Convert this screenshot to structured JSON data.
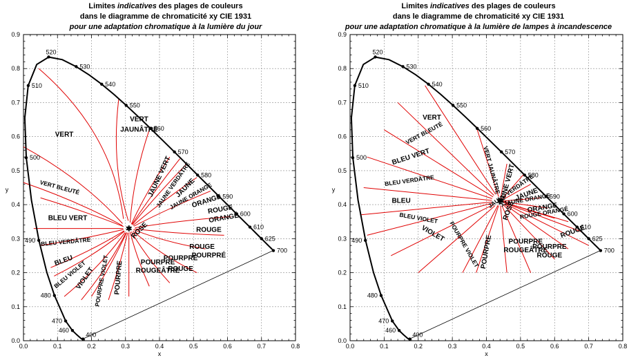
{
  "colors": {
    "boundary": "#000000",
    "region_lines": "#e00000",
    "grid": "#888888"
  },
  "chart_data": [
    {
      "type": "scatter",
      "title": {
        "line1_pre": "Limites ",
        "line1_italic": "indicatives",
        "line1_post": " des plages de couleurs",
        "line2": "dans le diagramme de chromaticité xy CIE 1931",
        "line3": "pour une adaptation chromatique à la lumière du jour"
      },
      "xlabel": "x",
      "ylabel": "y",
      "xlim": [
        0,
        0.8
      ],
      "ylim": [
        0,
        0.9
      ],
      "x_ticks": [
        "0.0",
        "0.1",
        "0.2",
        "0.3",
        "0.4",
        "0.5",
        "0.6",
        "0.7",
        "0.8"
      ],
      "y_ticks": [
        "0.0",
        "0.1",
        "0.2",
        "0.3",
        "0.4",
        "0.5",
        "0.6",
        "0.7",
        "0.8",
        "0.9"
      ],
      "grid": true,
      "white_point": [
        0.31,
        0.33
      ],
      "wavelength_labels": [
        {
          "nm": "400",
          "x": 0.175,
          "y": 0.005
        },
        {
          "nm": "460",
          "x": 0.144,
          "y": 0.03
        },
        {
          "nm": "470",
          "x": 0.124,
          "y": 0.058
        },
        {
          "nm": "480",
          "x": 0.091,
          "y": 0.133
        },
        {
          "nm": "490",
          "x": 0.045,
          "y": 0.295
        },
        {
          "nm": "500",
          "x": 0.008,
          "y": 0.538
        },
        {
          "nm": "510",
          "x": 0.014,
          "y": 0.75
        },
        {
          "nm": "520",
          "x": 0.074,
          "y": 0.834
        },
        {
          "nm": "530",
          "x": 0.155,
          "y": 0.806
        },
        {
          "nm": "540",
          "x": 0.23,
          "y": 0.754
        },
        {
          "nm": "550",
          "x": 0.302,
          "y": 0.692
        },
        {
          "nm": "560",
          "x": 0.373,
          "y": 0.624
        },
        {
          "nm": "570",
          "x": 0.444,
          "y": 0.555
        },
        {
          "nm": "580",
          "x": 0.512,
          "y": 0.487
        },
        {
          "nm": "590",
          "x": 0.575,
          "y": 0.424
        },
        {
          "nm": "600",
          "x": 0.627,
          "y": 0.373
        },
        {
          "nm": "610",
          "x": 0.666,
          "y": 0.334
        },
        {
          "nm": "625",
          "x": 0.7,
          "y": 0.3
        },
        {
          "nm": "700",
          "x": 0.735,
          "y": 0.265
        }
      ],
      "region_labels": [
        {
          "text": "VERT",
          "x": 0.12,
          "y": 0.6,
          "rot": 0
        },
        {
          "text": "VERT",
          "x": 0.34,
          "y": 0.645,
          "rot": 0
        },
        {
          "text": "JAUNÂTRE",
          "x": 0.34,
          "y": 0.615,
          "rot": 0
        },
        {
          "text": "VERT BLEUTÉ",
          "x": 0.105,
          "y": 0.445,
          "rot": 15
        },
        {
          "text": "JAUNE VERT",
          "x": 0.405,
          "y": 0.48,
          "rot": -65
        },
        {
          "text": "JAUNE VERDÂTRE",
          "x": 0.445,
          "y": 0.455,
          "rot": -55
        },
        {
          "text": "JAUNE",
          "x": 0.48,
          "y": 0.445,
          "rot": -45
        },
        {
          "text": "JAUNE ORANGE",
          "x": 0.495,
          "y": 0.42,
          "rot": -30
        },
        {
          "text": "ORANGE",
          "x": 0.54,
          "y": 0.405,
          "rot": -18
        },
        {
          "text": "ROUGE",
          "x": 0.58,
          "y": 0.38,
          "rot": -10
        },
        {
          "text": "ORANGÉ",
          "x": 0.59,
          "y": 0.355,
          "rot": -10
        },
        {
          "text": "BLEU VERT",
          "x": 0.13,
          "y": 0.355,
          "rot": 0
        },
        {
          "text": "ROSE",
          "x": 0.345,
          "y": 0.32,
          "rot": -45
        },
        {
          "text": "ROUGE",
          "x": 0.545,
          "y": 0.32,
          "rot": 0
        },
        {
          "text": "BLEU VERDÂTRE",
          "x": 0.125,
          "y": 0.285,
          "rot": -5
        },
        {
          "text": "ROUGE",
          "x": 0.525,
          "y": 0.27,
          "rot": 0
        },
        {
          "text": "POURPRÉ",
          "x": 0.545,
          "y": 0.245,
          "rot": 0
        },
        {
          "text": "BLEU",
          "x": 0.12,
          "y": 0.23,
          "rot": -20
        },
        {
          "text": "BLEU VIOLET",
          "x": 0.14,
          "y": 0.19,
          "rot": -40
        },
        {
          "text": "VIOLET",
          "x": 0.185,
          "y": 0.18,
          "rot": -55
        },
        {
          "text": "POURPRE VIOLET",
          "x": 0.235,
          "y": 0.175,
          "rot": -80
        },
        {
          "text": "POURPRE",
          "x": 0.285,
          "y": 0.185,
          "rot": -85
        },
        {
          "text": "POURPRE",
          "x": 0.395,
          "y": 0.225,
          "rot": 0
        },
        {
          "text": "ROUGEÂTRE",
          "x": 0.395,
          "y": 0.2,
          "rot": 0
        },
        {
          "text": "POURPRE",
          "x": 0.462,
          "y": 0.237,
          "rot": 0
        },
        {
          "text": "ROUGE",
          "x": 0.462,
          "y": 0.205,
          "rot": 0
        }
      ]
    },
    {
      "type": "scatter",
      "title": {
        "line1_pre": "Limites ",
        "line1_italic": "indicatives",
        "line1_post": " des plages de couleurs",
        "line2": "dans le diagramme de chromaticité xy CIE 1931",
        "line3": "pour une adaptation chromatique à la lumière de lampes à incandescence"
      },
      "xlabel": "x",
      "ylabel": "y",
      "xlim": [
        0,
        0.8
      ],
      "ylim": [
        0,
        0.9
      ],
      "x_ticks": [
        "0.0",
        "0.1",
        "0.2",
        "0.3",
        "0.4",
        "0.5",
        "0.6",
        "0.7",
        "0.8"
      ],
      "y_ticks": [
        "0.0",
        "0.1",
        "0.2",
        "0.3",
        "0.4",
        "0.5",
        "0.6",
        "0.7",
        "0.8",
        "0.9"
      ],
      "grid": true,
      "white_point": [
        0.44,
        0.41
      ],
      "wavelength_labels": [
        {
          "nm": "400",
          "x": 0.175,
          "y": 0.005
        },
        {
          "nm": "460",
          "x": 0.144,
          "y": 0.03
        },
        {
          "nm": "470",
          "x": 0.124,
          "y": 0.058
        },
        {
          "nm": "480",
          "x": 0.091,
          "y": 0.133
        },
        {
          "nm": "490",
          "x": 0.045,
          "y": 0.295
        },
        {
          "nm": "500",
          "x": 0.008,
          "y": 0.538
        },
        {
          "nm": "510",
          "x": 0.014,
          "y": 0.75
        },
        {
          "nm": "520",
          "x": 0.074,
          "y": 0.834
        },
        {
          "nm": "530",
          "x": 0.155,
          "y": 0.806
        },
        {
          "nm": "540",
          "x": 0.23,
          "y": 0.754
        },
        {
          "nm": "550",
          "x": 0.302,
          "y": 0.692
        },
        {
          "nm": "560",
          "x": 0.373,
          "y": 0.624
        },
        {
          "nm": "570",
          "x": 0.444,
          "y": 0.555
        },
        {
          "nm": "580",
          "x": 0.512,
          "y": 0.487
        },
        {
          "nm": "590",
          "x": 0.575,
          "y": 0.424
        },
        {
          "nm": "600",
          "x": 0.627,
          "y": 0.373
        },
        {
          "nm": "610",
          "x": 0.666,
          "y": 0.334
        },
        {
          "nm": "625",
          "x": 0.7,
          "y": 0.3
        },
        {
          "nm": "700",
          "x": 0.735,
          "y": 0.265
        }
      ],
      "region_labels": [
        {
          "text": "VERT",
          "x": 0.24,
          "y": 0.65,
          "rot": 0
        },
        {
          "text": "VERT BLEUTÉ",
          "x": 0.22,
          "y": 0.605,
          "rot": -28
        },
        {
          "text": "BLEU VERT",
          "x": 0.18,
          "y": 0.535,
          "rot": -18
        },
        {
          "text": "BLEU VERDÂTRE",
          "x": 0.175,
          "y": 0.465,
          "rot": -8
        },
        {
          "text": "BLEU",
          "x": 0.15,
          "y": 0.405,
          "rot": 0
        },
        {
          "text": "BLEU VIOLET",
          "x": 0.2,
          "y": 0.355,
          "rot": 10
        },
        {
          "text": "VIOLET",
          "x": 0.24,
          "y": 0.31,
          "rot": 30
        },
        {
          "text": "POURPRE VIOLET",
          "x": 0.33,
          "y": 0.28,
          "rot": 60
        },
        {
          "text": "POURPRE",
          "x": 0.405,
          "y": 0.26,
          "rot": -80
        },
        {
          "text": "VERT JAUNÂTRE",
          "x": 0.41,
          "y": 0.5,
          "rot": 75
        },
        {
          "text": "JAUNE VERT",
          "x": 0.465,
          "y": 0.455,
          "rot": -75
        },
        {
          "text": "JAUNE VERDÂTRE",
          "x": 0.475,
          "y": 0.435,
          "rot": -35
        },
        {
          "text": "JAUNE",
          "x": 0.52,
          "y": 0.425,
          "rot": -20
        },
        {
          "text": "JAUNE ORANGE",
          "x": 0.52,
          "y": 0.41,
          "rot": -10
        },
        {
          "text": "ORANGE",
          "x": 0.565,
          "y": 0.385,
          "rot": -10
        },
        {
          "text": "ROUGE ORANGÉ",
          "x": 0.57,
          "y": 0.37,
          "rot": -10
        },
        {
          "text": "ROUGE",
          "x": 0.655,
          "y": 0.315,
          "rot": -20
        },
        {
          "text": "ROSE",
          "x": 0.47,
          "y": 0.38,
          "rot": -70
        },
        {
          "text": "POURPRE",
          "x": 0.515,
          "y": 0.285,
          "rot": 0
        },
        {
          "text": "ROUGEÂTRE",
          "x": 0.515,
          "y": 0.26,
          "rot": 0
        },
        {
          "text": "POURPRE",
          "x": 0.585,
          "y": 0.27,
          "rot": 0
        },
        {
          "text": "ROUGE",
          "x": 0.585,
          "y": 0.245,
          "rot": 0
        }
      ]
    }
  ]
}
